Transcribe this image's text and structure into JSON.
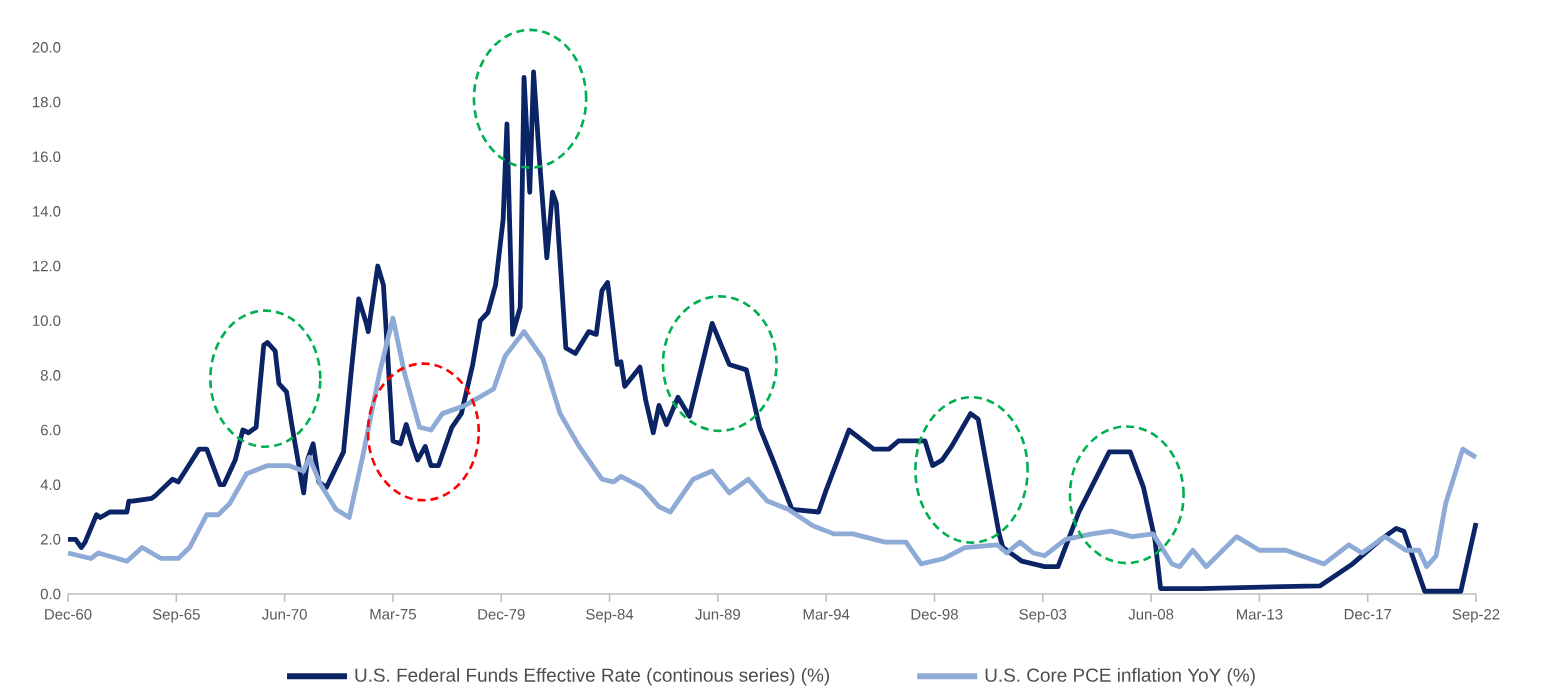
{
  "chart_data": {
    "type": "line",
    "xlim": [
      "1960-12",
      "2022-09"
    ],
    "xticks": [
      {
        "value": "1960-12",
        "label": "Dec-60"
      },
      {
        "value": "1965-09",
        "label": "Sep-65"
      },
      {
        "value": "1970-06",
        "label": "Jun-70"
      },
      {
        "value": "1975-03",
        "label": "Mar-75"
      },
      {
        "value": "1979-12",
        "label": "Dec-79"
      },
      {
        "value": "1984-09",
        "label": "Sep-84"
      },
      {
        "value": "1989-06",
        "label": "Jun-89"
      },
      {
        "value": "1994-03",
        "label": "Mar-94"
      },
      {
        "value": "1998-12",
        "label": "Dec-98"
      },
      {
        "value": "2003-09",
        "label": "Sep-03"
      },
      {
        "value": "2008-06",
        "label": "Jun-08"
      },
      {
        "value": "2013-03",
        "label": "Mar-13"
      },
      {
        "value": "2017-12",
        "label": "Dec-17"
      },
      {
        "value": "2022-09",
        "label": "Sep-22"
      }
    ],
    "ylim": [
      0,
      20
    ],
    "yticks": [
      {
        "value": 0,
        "label": "0.0"
      },
      {
        "value": 2,
        "label": "2.0"
      },
      {
        "value": 4,
        "label": "4.0"
      },
      {
        "value": 6,
        "label": "6.0"
      },
      {
        "value": 8,
        "label": "8.0"
      },
      {
        "value": 10,
        "label": "10.0"
      },
      {
        "value": 12,
        "label": "12.0"
      },
      {
        "value": 14,
        "label": "14.0"
      },
      {
        "value": 16,
        "label": "16.0"
      },
      {
        "value": 18,
        "label": "18.0"
      },
      {
        "value": 20,
        "label": "20.0"
      }
    ],
    "legend": "bottom",
    "series": [
      {
        "name": "U.S. Federal Funds Effective Rate (continous series) (%)",
        "color": "#0b2466",
        "x": [
          "1960-12",
          "1961-04",
          "1961-07",
          "1961-09",
          "1962-03",
          "1962-05",
          "1962-10",
          "1963-07",
          "1963-08",
          "1963-10",
          "1964-08",
          "1964-10",
          "1965-07",
          "1965-10",
          "1966-09",
          "1967-01",
          "1967-08",
          "1967-10",
          "1968-04",
          "1968-08",
          "1968-11",
          "1969-03",
          "1969-07",
          "1969-09",
          "1970-01",
          "1970-03",
          "1970-07",
          "1970-10",
          "1971-01",
          "1971-04",
          "1971-06",
          "1971-09",
          "1971-12",
          "1972-04",
          "1973-01",
          "1973-05",
          "1973-09",
          "1974-01",
          "1974-02",
          "1974-07",
          "1974-10",
          "1975-03",
          "1975-07",
          "1975-10",
          "1976-01",
          "1976-04",
          "1976-08",
          "1976-11",
          "1977-03",
          "1977-10",
          "1978-03",
          "1978-09",
          "1979-01",
          "1979-05",
          "1979-09",
          "1980-01",
          "1980-03",
          "1980-06",
          "1980-10",
          "1980-12",
          "1981-03",
          "1981-05",
          "1981-08",
          "1981-12",
          "1982-03",
          "1982-05",
          "1982-10",
          "1983-03",
          "1983-10",
          "1984-02",
          "1984-05",
          "1984-08",
          "1985-01",
          "1985-03",
          "1985-05",
          "1986-01",
          "1986-04",
          "1986-08",
          "1986-11",
          "1987-03",
          "1987-09",
          "1988-03",
          "1989-03",
          "1989-12",
          "1990-09",
          "1991-04",
          "1991-11",
          "1992-09",
          "1993-11",
          "1994-03",
          "1995-03",
          "1996-04",
          "1996-12",
          "1997-05",
          "1998-07",
          "1998-11",
          "1999-04",
          "1999-09",
          "2000-07",
          "2000-11",
          "2001-10",
          "2001-12",
          "2002-10",
          "2003-10",
          "2004-05",
          "2005-04",
          "2006-08",
          "2007-07",
          "2008-02",
          "2008-08",
          "2008-11",
          "2010-08",
          "2015-11",
          "2017-04",
          "2018-07",
          "2019-03",
          "2019-07",
          "2020-06",
          "2022-01",
          "2022-09"
        ],
        "values": [
          2.0,
          2.0,
          1.7,
          1.9,
          2.9,
          2.8,
          3.0,
          3.0,
          3.4,
          3.4,
          3.5,
          3.6,
          4.2,
          4.1,
          5.3,
          5.3,
          4.0,
          4.0,
          4.9,
          6.0,
          5.9,
          6.1,
          9.1,
          9.2,
          8.9,
          7.7,
          7.4,
          6.1,
          4.9,
          3.7,
          4.9,
          5.5,
          4.1,
          3.9,
          5.2,
          8.1,
          10.8,
          9.9,
          9.6,
          12.0,
          11.3,
          5.6,
          5.5,
          6.2,
          5.5,
          4.9,
          5.4,
          4.7,
          4.7,
          6.1,
          6.6,
          8.4,
          10.0,
          10.3,
          11.3,
          13.7,
          17.2,
          9.5,
          10.5,
          18.9,
          14.7,
          19.1,
          16.0,
          12.3,
          14.7,
          14.3,
          9.0,
          8.8,
          9.6,
          9.5,
          11.1,
          11.4,
          8.4,
          8.5,
          7.6,
          8.3,
          7.1,
          5.9,
          6.9,
          6.2,
          7.2,
          6.5,
          9.9,
          8.4,
          8.2,
          6.1,
          4.9,
          3.1,
          3.0,
          3.8,
          6.0,
          5.3,
          5.3,
          5.6,
          5.6,
          4.7,
          4.9,
          5.4,
          6.6,
          6.4,
          2.2,
          1.7,
          1.2,
          1.0,
          1.0,
          3.0,
          5.2,
          5.2,
          3.9,
          2.0,
          0.2,
          0.2,
          0.3,
          1.1,
          2.0,
          2.4,
          2.3,
          0.1,
          0.1,
          2.6
        ]
      },
      {
        "name": "U.S. Core PCE inflation YoY (%)",
        "color": "#8eaad6",
        "x": [
          "1960-12",
          "1961-12",
          "1962-04",
          "1963-07",
          "1964-03",
          "1965-01",
          "1965-10",
          "1966-04",
          "1967-01",
          "1967-07",
          "1968-01",
          "1968-10",
          "1969-09",
          "1970-08",
          "1971-04",
          "1971-07",
          "1972-01",
          "1972-09",
          "1973-04",
          "1973-11",
          "1974-08",
          "1975-03",
          "1975-09",
          "1976-05",
          "1976-11",
          "1977-05",
          "1978-05",
          "1979-08",
          "1980-02",
          "1980-12",
          "1981-10",
          "1982-07",
          "1983-05",
          "1984-02",
          "1984-05",
          "1984-11",
          "1985-03",
          "1986-02",
          "1986-11",
          "1987-05",
          "1988-05",
          "1989-03",
          "1989-12",
          "1990-10",
          "1991-08",
          "1992-07",
          "1993-08",
          "1994-07",
          "1995-05",
          "1996-10",
          "1997-09",
          "1998-05",
          "1999-05",
          "2000-04",
          "2001-09",
          "2002-02",
          "2002-09",
          "2003-04",
          "2003-10",
          "2004-09",
          "2005-11",
          "2006-09",
          "2007-08",
          "2008-07",
          "2009-05",
          "2009-09",
          "2010-04",
          "2010-11",
          "2012-03",
          "2013-03",
          "2014-05",
          "2016-01",
          "2017-02",
          "2017-09",
          "2018-09",
          "2019-08",
          "2020-03",
          "2020-07",
          "2020-12",
          "2021-05",
          "2022-02",
          "2022-09"
        ],
        "values": [
          1.5,
          1.3,
          1.5,
          1.2,
          1.7,
          1.3,
          1.3,
          1.7,
          2.9,
          2.9,
          3.3,
          4.4,
          4.7,
          4.7,
          4.5,
          5.0,
          4.0,
          3.1,
          2.8,
          5.0,
          8.1,
          10.1,
          8.1,
          6.1,
          6.0,
          6.6,
          6.9,
          7.5,
          8.7,
          9.6,
          8.6,
          6.6,
          5.4,
          4.5,
          4.2,
          4.1,
          4.3,
          3.9,
          3.2,
          3.0,
          4.2,
          4.5,
          3.7,
          4.2,
          3.4,
          3.1,
          2.5,
          2.2,
          2.2,
          1.9,
          1.9,
          1.1,
          1.3,
          1.7,
          1.8,
          1.5,
          1.9,
          1.5,
          1.4,
          2.0,
          2.2,
          2.3,
          2.1,
          2.2,
          1.1,
          1.0,
          1.6,
          1.0,
          2.1,
          1.6,
          1.6,
          1.1,
          1.8,
          1.5,
          2.1,
          1.6,
          1.6,
          1.0,
          1.4,
          3.3,
          5.3,
          5.0
        ]
      }
    ]
  }
}
